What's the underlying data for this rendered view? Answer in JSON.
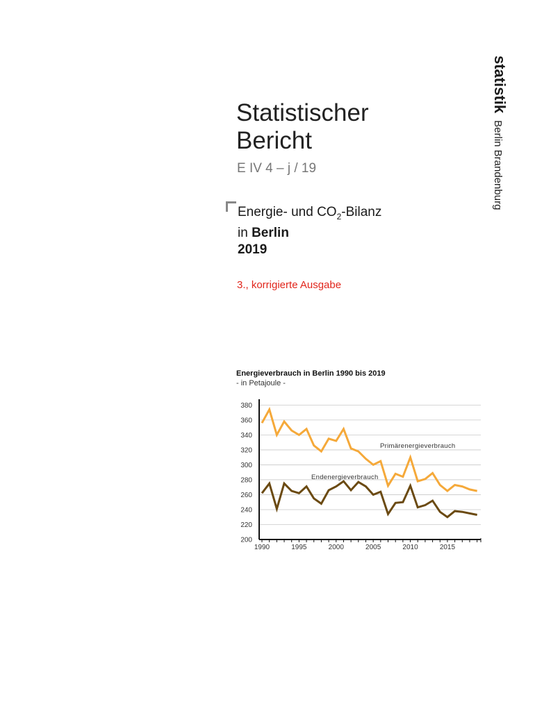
{
  "brand": {
    "name": "statistik",
    "region": "Berlin Brandenburg"
  },
  "report": {
    "title_line1": "Statistischer",
    "title_line2": "Bericht",
    "code": "E IV 4 – j / 19",
    "topic_prefix": "Energie- und CO",
    "topic_subscript": "2",
    "topic_suffix": "-Bilanz",
    "location_prefix": "in ",
    "location": "Berlin",
    "year": "2019",
    "edition": "3., korrigierte Ausgabe"
  },
  "colors": {
    "primary_series": "#f5a93a",
    "end_series": "#6b4a12",
    "edition_text": "#e1251b"
  },
  "chart_data": {
    "type": "line",
    "title": "Energieverbrauch in Berlin 1990 bis 2019",
    "subtitle": "- in Petajoule -",
    "x": [
      1990,
      1991,
      1992,
      1993,
      1994,
      1995,
      1996,
      1997,
      1998,
      1999,
      2000,
      2001,
      2002,
      2003,
      2004,
      2005,
      2006,
      2007,
      2008,
      2009,
      2010,
      2011,
      2012,
      2013,
      2014,
      2015,
      2016,
      2017,
      2018,
      2019
    ],
    "xticks": [
      1990,
      1995,
      2000,
      2005,
      2010,
      2015
    ],
    "yticks": [
      200,
      220,
      240,
      260,
      280,
      300,
      320,
      340,
      360,
      380
    ],
    "ylim": [
      200,
      385
    ],
    "grid": true,
    "series": [
      {
        "name": "Primärenergieverbrauch",
        "color": "#f5a93a",
        "values": [
          356,
          374,
          340,
          358,
          346,
          340,
          348,
          326,
          318,
          335,
          332,
          348,
          322,
          318,
          308,
          300,
          305,
          272,
          288,
          284,
          310,
          278,
          281,
          289,
          273,
          265,
          273,
          271,
          267,
          265
        ]
      },
      {
        "name": "Endenergieverbrauch",
        "color": "#6b4a12",
        "values": [
          262,
          275,
          241,
          275,
          265,
          262,
          271,
          255,
          248,
          266,
          271,
          278,
          266,
          277,
          271,
          260,
          264,
          234,
          249,
          250,
          272,
          243,
          246,
          252,
          237,
          230,
          238,
          237,
          235,
          233
        ]
      }
    ]
  }
}
